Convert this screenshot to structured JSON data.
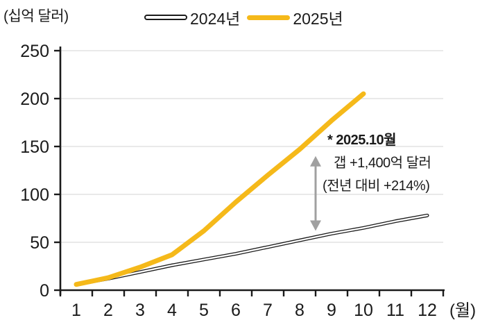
{
  "unit_label": "(십억 달러)",
  "legend": {
    "items": [
      {
        "label": "2024년",
        "style": "black-outline-line"
      },
      {
        "label": "2025년",
        "style": "solid-yellow-line"
      }
    ]
  },
  "annotation": {
    "line1": "* 2025.10월",
    "line2": "갭 +1,400억 달러",
    "line3": "(전년 대비 +214%)"
  },
  "colors": {
    "accent_yellow": "#F5B91A",
    "line_2024": "#1a1a1a",
    "arrow_gray": "#A0A0A0",
    "gridline": "#E2E2E2",
    "axis": "#1a1a1a"
  },
  "chart_data": {
    "type": "line",
    "title": "",
    "ylabel": "(십억 달러)",
    "x_tick_labels": [
      "1",
      "2",
      "3",
      "4",
      "5",
      "6",
      "7",
      "8",
      "9",
      "10",
      "11",
      "12"
    ],
    "x_axis_suffix": "(월)",
    "y_ticks": [
      0,
      50,
      100,
      150,
      200,
      250
    ],
    "ylim": [
      0,
      250
    ],
    "grid": "horizontal",
    "legend_position": "top",
    "series": [
      {
        "name": "2024년",
        "style": "double-outline-black",
        "months": [
          1,
          2,
          3,
          4,
          5,
          6,
          7,
          8,
          9,
          10,
          11,
          12
        ],
        "values": [
          6,
          12,
          19,
          26,
          32,
          38,
          45,
          52,
          59,
          65,
          72,
          78
        ]
      },
      {
        "name": "2025년",
        "style": "solid-yellow",
        "months": [
          1,
          2,
          3,
          4,
          5,
          6,
          7,
          8,
          9,
          10
        ],
        "values": [
          6,
          13,
          24,
          37,
          62,
          92,
          120,
          147,
          177,
          205
        ]
      }
    ],
    "gap_annotation": {
      "label": "* 2025.10월 갭 +1,400억 달러 (전년 대비 +214%)",
      "arrow_month": 8.5,
      "arrow_value_from": 62,
      "arrow_value_to": 140
    }
  }
}
